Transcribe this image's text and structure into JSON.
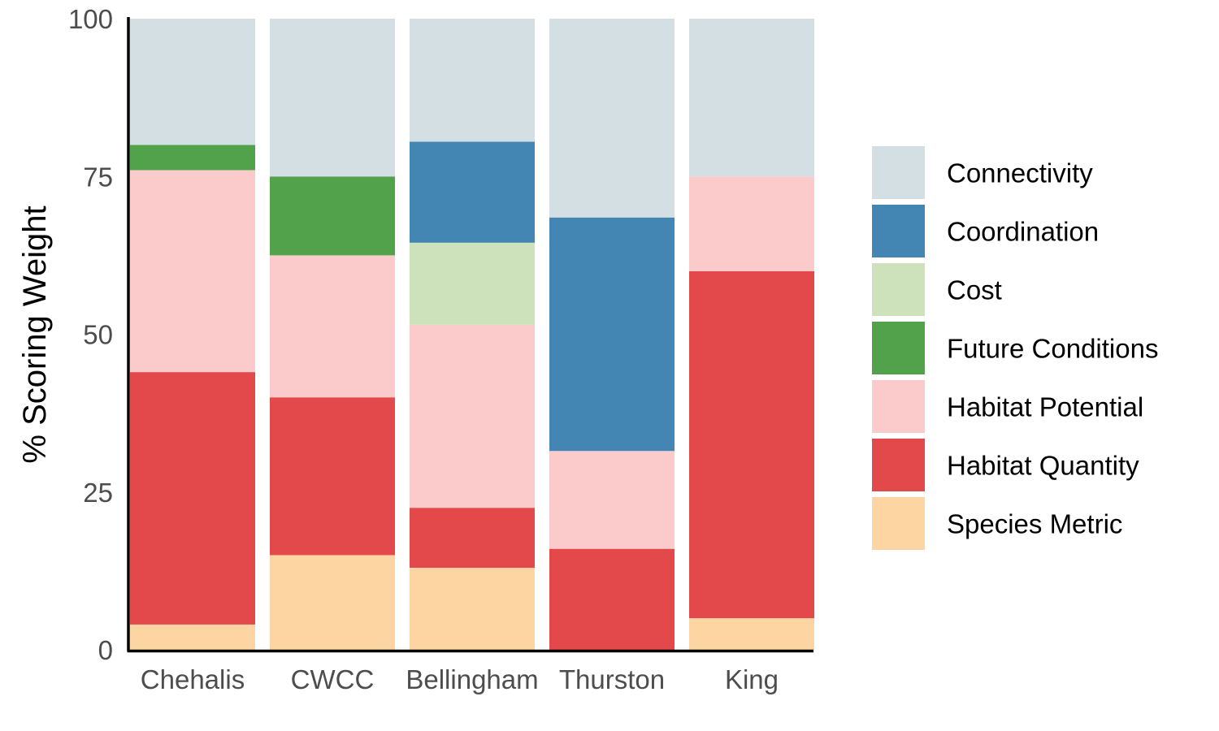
{
  "chart_data": {
    "type": "bar",
    "stacked": true,
    "title": "",
    "xlabel": "",
    "ylabel": "% Scoring Weight",
    "ylim": [
      0,
      100
    ],
    "yticks": [
      "0",
      "25",
      "50",
      "75",
      "100"
    ],
    "categories": [
      "Chehalis",
      "CWCC",
      "Bellingham",
      "Thurston",
      "King"
    ],
    "legend_position": "right",
    "series": [
      {
        "name": "Species Metric",
        "color": "#fdd5a2",
        "values": [
          4,
          15,
          13,
          0,
          5
        ]
      },
      {
        "name": "Habitat Quantity",
        "color": "#e3484b",
        "values": [
          40,
          25,
          9.5,
          16,
          55
        ]
      },
      {
        "name": "Habitat Potential",
        "color": "#fbcbcc",
        "values": [
          32,
          22.5,
          29,
          15.5,
          15
        ]
      },
      {
        "name": "Future Conditions",
        "color": "#52a14b",
        "values": [
          4,
          12.5,
          0,
          0,
          0
        ]
      },
      {
        "name": "Cost",
        "color": "#cde1bb",
        "values": [
          0,
          0,
          13,
          0,
          0
        ]
      },
      {
        "name": "Coordination",
        "color": "#4386b4",
        "values": [
          0,
          0,
          16,
          37,
          0
        ]
      },
      {
        "name": "Connectivity",
        "color": "#d4dfe3",
        "values": [
          20,
          25,
          19.5,
          31.5,
          25
        ]
      }
    ],
    "legend_order": [
      "Connectivity",
      "Coordination",
      "Cost",
      "Future Conditions",
      "Habitat Potential",
      "Habitat Quantity",
      "Species Metric"
    ]
  }
}
